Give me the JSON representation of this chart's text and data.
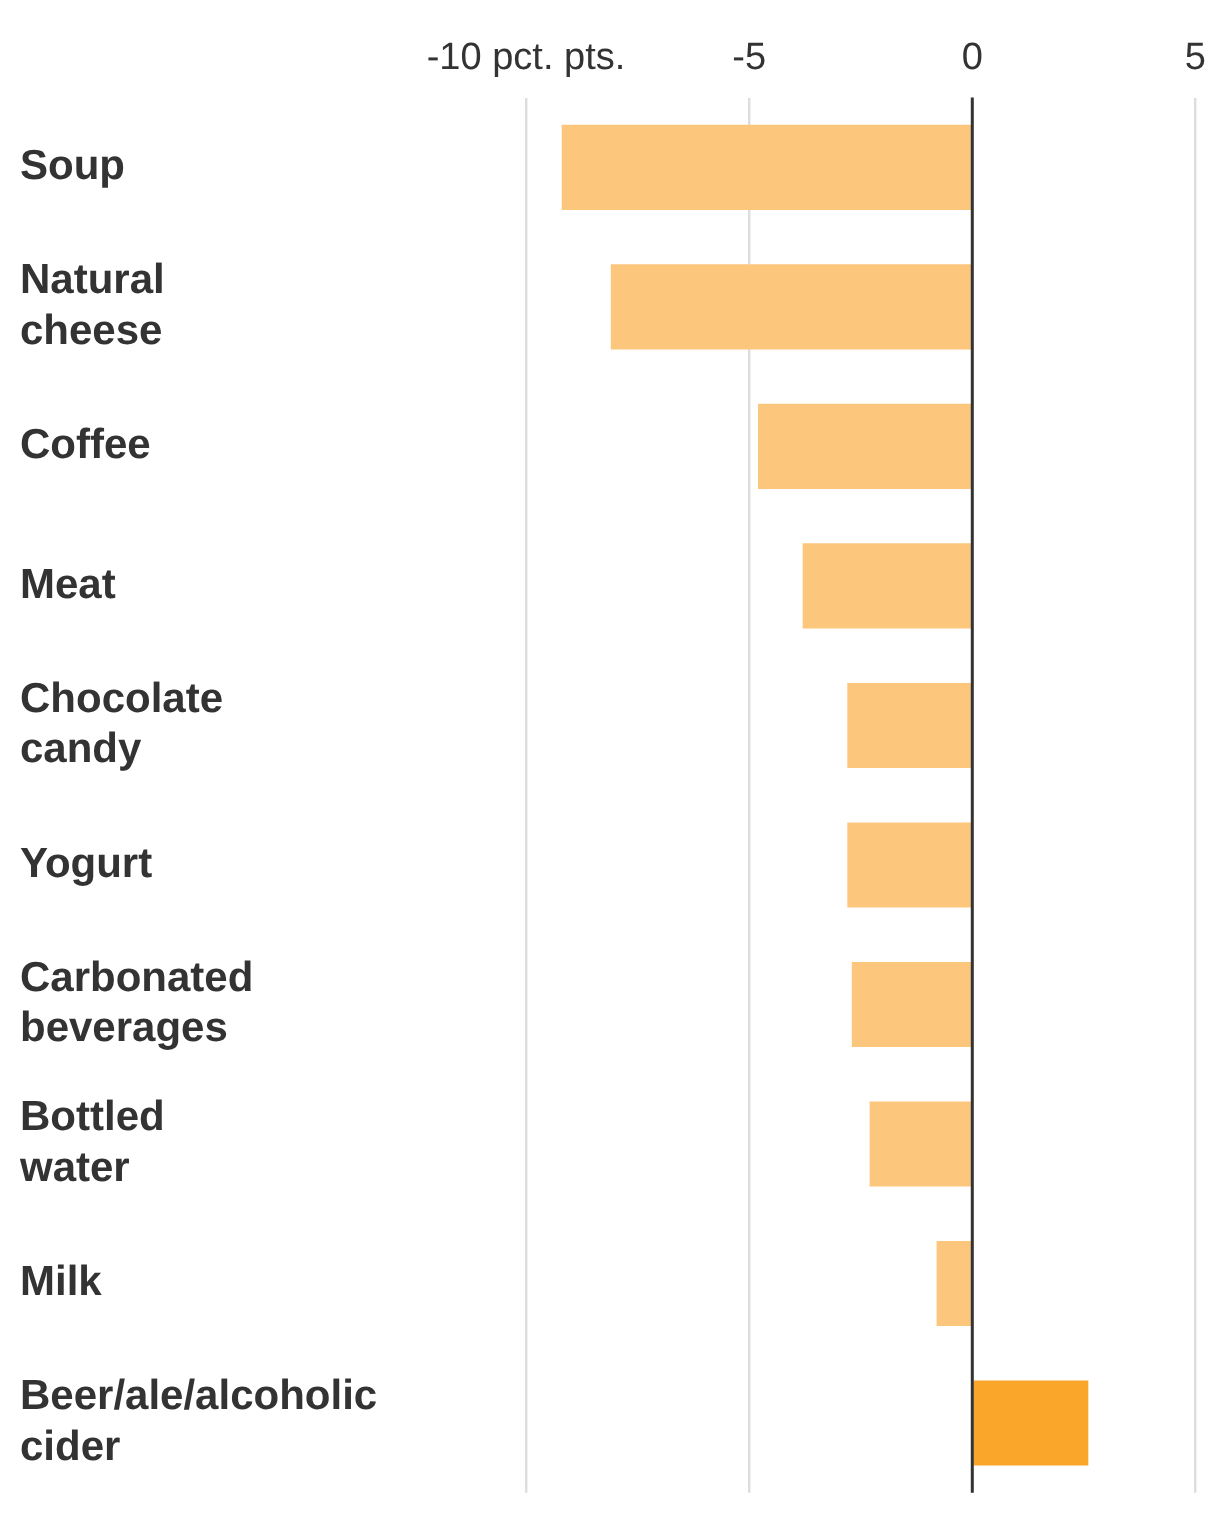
{
  "chart_data": {
    "type": "bar",
    "orientation": "horizontal",
    "categories": [
      "Soup",
      "Natural cheese",
      "Coffee",
      "Meat",
      "Chocolate candy",
      "Yogurt",
      "Carbonated beverages",
      "Bottled water",
      "Milk",
      "Beer/ale/alcoholic cider"
    ],
    "values": [
      -9.2,
      -8.1,
      -4.8,
      -3.8,
      -2.8,
      -2.8,
      -2.7,
      -2.3,
      -0.8,
      2.6
    ],
    "colors": [
      "#fcc67c",
      "#fcc67c",
      "#fcc67c",
      "#fcc67c",
      "#fcc67c",
      "#fcc67c",
      "#fcc67c",
      "#fcc67c",
      "#fcc67c",
      "#f9a62a"
    ],
    "xlim": [
      -10,
      5
    ],
    "xticks": [
      {
        "value": -10,
        "label": "-10 pct. pts."
      },
      -5,
      0,
      5
    ],
    "ref_lines": [
      {
        "axis": "x",
        "value": 0,
        "color": "#333333"
      }
    ],
    "grid": "x",
    "legend": false
  }
}
